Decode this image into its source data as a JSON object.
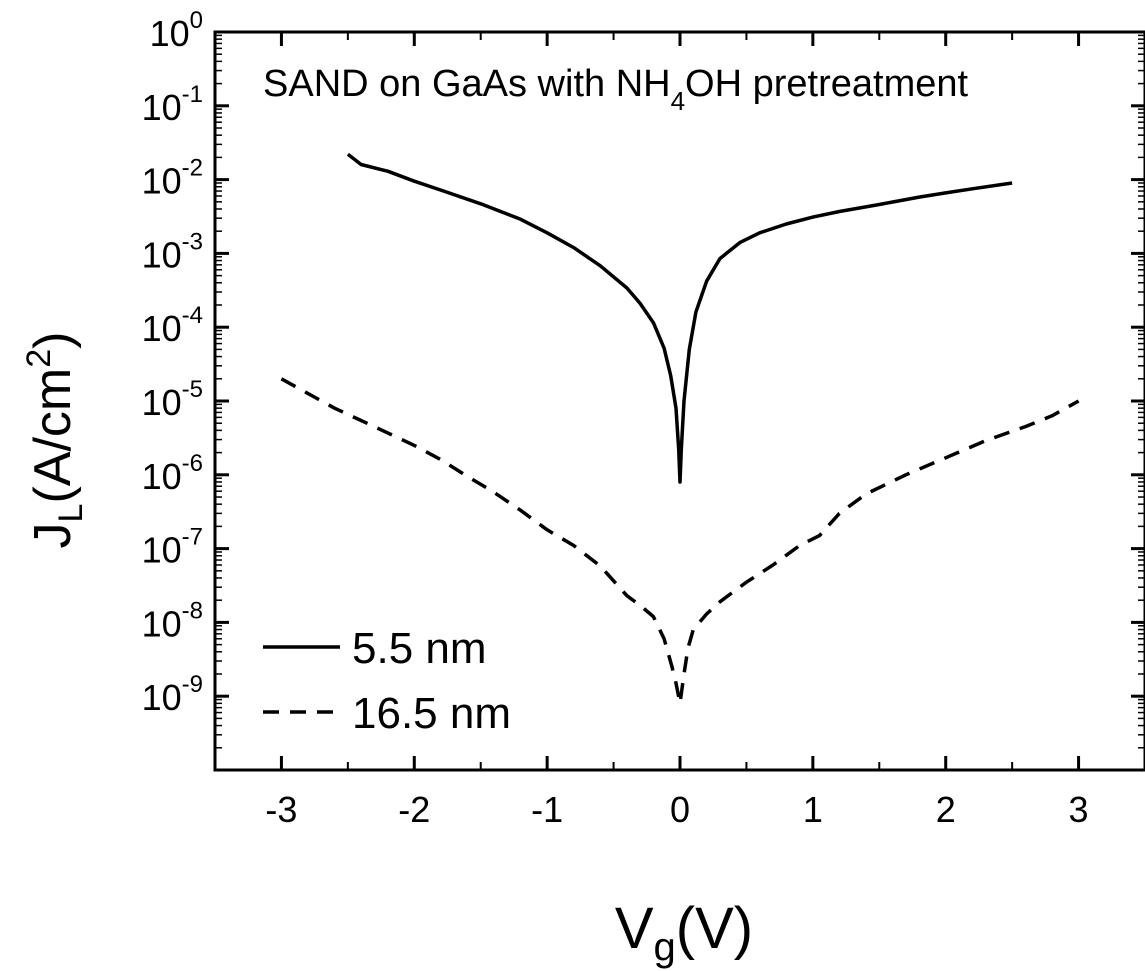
{
  "chart_data": {
    "type": "line",
    "title": "SAND on GaAs with NH",
    "title_sub": "4",
    "title_tail": "OH pretreatment",
    "xlabel": "V",
    "xlabel_sub": "g",
    "xlabel_tail": "(V)",
    "ylabel": "J",
    "ylabel_sub": "L",
    "ylabel_mid": "(A/cm",
    "ylabel_sup": "2",
    "ylabel_tail": ")",
    "xlim": [
      -3.5,
      3.5
    ],
    "ylim": [
      1e-10,
      1
    ],
    "yscale": "log",
    "grid": false,
    "legend_position": "bottom-left",
    "x_ticks": [
      -3,
      -2,
      -1,
      0,
      1,
      2,
      3
    ],
    "x_tick_labels": [
      "-3",
      "-2",
      "-1",
      "0",
      "1",
      "2",
      "3"
    ],
    "y_ticks": [
      0,
      -1,
      -2,
      -3,
      -4,
      -5,
      -6,
      -7,
      -8,
      -9
    ],
    "y_tick_base": "10",
    "y_tick_exponents": [
      "0",
      "-1",
      "-2",
      "-3",
      "-4",
      "-5",
      "-6",
      "-7",
      "-8",
      "-9"
    ],
    "series": [
      {
        "name": "5.5 nm",
        "style": "solid",
        "color": "#000000",
        "points": [
          [
            -2.5,
            0.022
          ],
          [
            -2.4,
            0.016
          ],
          [
            -2.2,
            0.013
          ],
          [
            -2.0,
            0.0095
          ],
          [
            -1.8,
            0.0072
          ],
          [
            -1.5,
            0.0047
          ],
          [
            -1.2,
            0.0029
          ],
          [
            -1.0,
            0.0019
          ],
          [
            -0.8,
            0.0012
          ],
          [
            -0.6,
            0.00068
          ],
          [
            -0.4,
            0.00034
          ],
          [
            -0.3,
            0.00021
          ],
          [
            -0.2,
            0.000115
          ],
          [
            -0.12,
            5.2e-05
          ],
          [
            -0.07,
            2.2e-05
          ],
          [
            -0.03,
            8e-06
          ],
          [
            -0.01,
            2.2e-06
          ],
          [
            0.0,
            8e-07
          ],
          [
            0.01,
            2.2e-06
          ],
          [
            0.03,
            1e-05
          ],
          [
            0.07,
            5e-05
          ],
          [
            0.12,
            0.00016
          ],
          [
            0.2,
            0.00042
          ],
          [
            0.3,
            0.00085
          ],
          [
            0.45,
            0.0014
          ],
          [
            0.6,
            0.0019
          ],
          [
            0.8,
            0.0025
          ],
          [
            1.0,
            0.0031
          ],
          [
            1.2,
            0.0037
          ],
          [
            1.5,
            0.0046
          ],
          [
            1.8,
            0.0058
          ],
          [
            2.0,
            0.0066
          ],
          [
            2.2,
            0.0075
          ],
          [
            2.5,
            0.009
          ]
        ]
      },
      {
        "name": "16.5 nm",
        "style": "dashed",
        "color": "#000000",
        "points": [
          [
            -3.0,
            2e-05
          ],
          [
            -2.6,
            8e-06
          ],
          [
            -2.2,
            3.7e-06
          ],
          [
            -2.0,
            2.5e-06
          ],
          [
            -1.8,
            1.6e-06
          ],
          [
            -1.6,
            9.5e-07
          ],
          [
            -1.4,
            5.8e-07
          ],
          [
            -1.2,
            3.3e-07
          ],
          [
            -1.0,
            1.8e-07
          ],
          [
            -0.8,
            1.1e-07
          ],
          [
            -0.6,
            5.8e-08
          ],
          [
            -0.4,
            2.3e-08
          ],
          [
            -0.3,
            1.7e-08
          ],
          [
            -0.2,
            1.2e-08
          ],
          [
            -0.12,
            6e-09
          ],
          [
            -0.06,
            2.5e-09
          ],
          [
            -0.03,
            1.5e-09
          ],
          [
            0.0,
            8e-10
          ],
          [
            0.03,
            2e-09
          ],
          [
            0.06,
            4.5e-09
          ],
          [
            0.1,
            8e-09
          ],
          [
            0.2,
            1.3e-08
          ],
          [
            0.3,
            1.9e-08
          ],
          [
            0.5,
            3.5e-08
          ],
          [
            0.7,
            6e-08
          ],
          [
            0.9,
            1.1e-07
          ],
          [
            1.05,
            1.5e-07
          ],
          [
            1.2,
            3e-07
          ],
          [
            1.4,
            5.5e-07
          ],
          [
            1.7,
            1e-06
          ],
          [
            2.0,
            1.7e-06
          ],
          [
            2.3,
            2.9e-06
          ],
          [
            2.6,
            4.5e-06
          ],
          [
            2.8,
            6.3e-06
          ],
          [
            3.0,
            1e-05
          ]
        ]
      }
    ]
  }
}
